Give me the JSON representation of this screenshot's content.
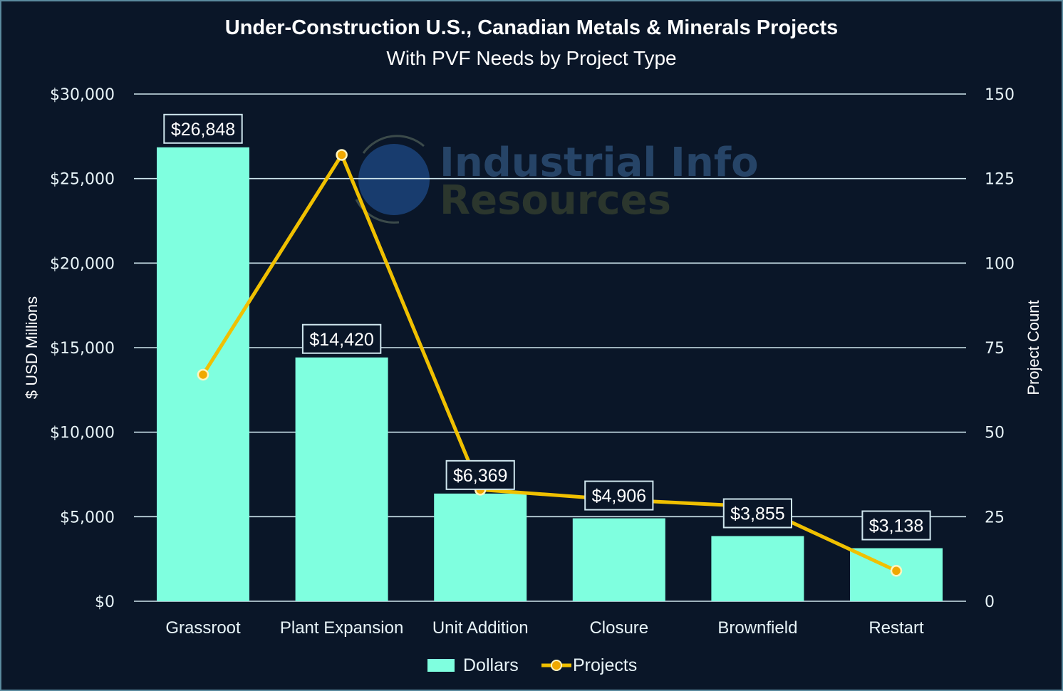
{
  "chart_data": {
    "type": "bar",
    "title": "Under-Construction U.S., Canadian Metals & Minerals Projects",
    "subtitle": "With PVF Needs by Project Type",
    "categories": [
      "Grassroot",
      "Plant Expansion",
      "Unit Addition",
      "Closure",
      "Brownfield",
      "Restart"
    ],
    "series": [
      {
        "name": "Dollars",
        "type": "bar",
        "axis": "left",
        "values": [
          26848,
          14420,
          6369,
          4906,
          3855,
          3138
        ],
        "labels": [
          "$26,848",
          "$14,420",
          "$6,369",
          "$4,906",
          "$3,855",
          "$3,138"
        ],
        "color": "#7fffdf"
      },
      {
        "name": "Projects",
        "type": "line",
        "axis": "right",
        "values": [
          67,
          132,
          33,
          30,
          28,
          9
        ],
        "color": "#f0c000"
      }
    ],
    "ylabel": "$ USD Millions",
    "y2label": "Project Count",
    "ylim": [
      0,
      30000
    ],
    "y2lim": [
      0,
      150
    ],
    "yticks": [
      "$0",
      "$5,000",
      "$10,000",
      "$15,000",
      "$20,000",
      "$25,000",
      "$30,000"
    ],
    "y2ticks": [
      "0",
      "25",
      "50",
      "75",
      "100",
      "125",
      "150"
    ],
    "grid": true,
    "legend": "bottom-center"
  },
  "watermark": {
    "line1": "Industrial Info",
    "line2": "Resources"
  },
  "colors": {
    "background": "#0a1628",
    "bar": "#7fffdf",
    "line": "#f0c000",
    "grid": "#cfe6ee"
  }
}
